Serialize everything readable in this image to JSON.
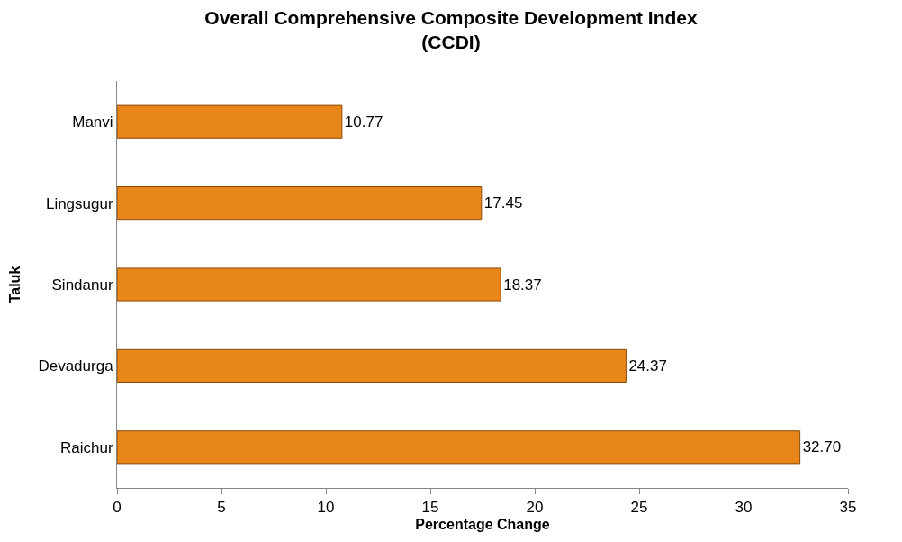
{
  "chart_data": {
    "type": "bar",
    "orientation": "horizontal",
    "title": "Overall Comprehensive Composite Development Index\n(CCDI)",
    "xlabel": "Percentage Change",
    "ylabel": "Taluk",
    "categories": [
      "Manvi",
      "Lingsugur",
      "Sindanur",
      "Devadurga",
      "Raichur"
    ],
    "values": [
      10.77,
      17.45,
      18.37,
      24.37,
      32.7
    ],
    "value_labels": [
      "10.77",
      "17.45",
      "18.37",
      "24.37",
      "32.70"
    ],
    "color": "#e8861a",
    "xlim": [
      0,
      35
    ],
    "xticks": [
      0,
      5,
      10,
      15,
      20,
      25,
      30,
      35
    ],
    "legend": false
  }
}
